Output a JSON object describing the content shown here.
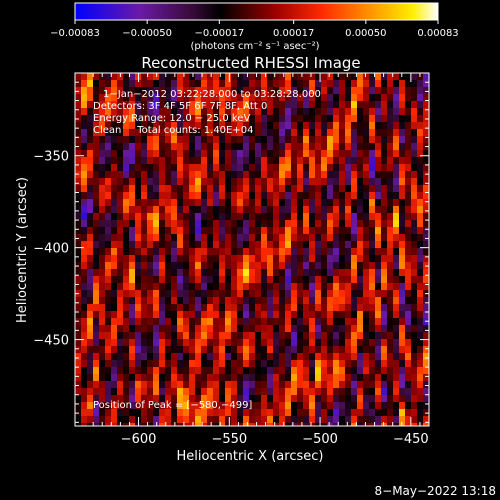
{
  "chart_data": {
    "type": "heatmap",
    "title": "Reconstructed RHESSI Image",
    "xlabel": "Heliocentric X (arcsec)",
    "ylabel": "Heliocentric Y (arcsec)",
    "xlim": [
      -635,
      -440
    ],
    "ylim": [
      -497,
      -305
    ],
    "x_ticks": [
      -600,
      -550,
      -500,
      -450
    ],
    "x_tick_labels": [
      "−600",
      "−550",
      "−500",
      "−450"
    ],
    "y_ticks": [
      -350,
      -400,
      -450
    ],
    "y_tick_labels": [
      "−350",
      "−400",
      "−450"
    ],
    "colorbar": {
      "min": -0.00083,
      "max": 0.00083,
      "tick_values": [
        -0.00083,
        -0.0005,
        -0.00017,
        0.00017,
        0.0005,
        0.00083
      ],
      "tick_labels": [
        "−0.00083",
        "−0.00050",
        "−0.00017",
        "0.00017",
        "0.00050",
        "0.00083"
      ],
      "unit_label": "(photons cm⁻² s⁻¹ asec⁻²)"
    },
    "annotations": {
      "time_range": "1−Jan−2012 03:22:28.000 to 03:28:28.000",
      "detectors": "Detectors: 3F 4F 5F 6F 7F 8F, Att 0",
      "energy": "Energy Range: 12.0 − 25.0 keV",
      "method": "Clean     Total counts: 1.40E+04",
      "peak": "Position of Peak = [−580,−499]"
    },
    "footer_date": "8−May−2022 13:18"
  }
}
